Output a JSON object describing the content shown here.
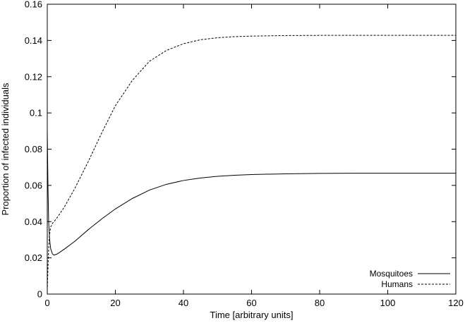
{
  "chart_data": {
    "type": "line",
    "xlabel": "Time [arbitrary units]",
    "ylabel": "Proportion of infected individuals",
    "xlim": [
      0,
      120
    ],
    "ylim": [
      0,
      0.16
    ],
    "x_ticks": [
      0,
      20,
      40,
      60,
      80,
      100,
      120
    ],
    "x_tick_labels": [
      "0",
      "20",
      "40",
      "60",
      "80",
      "100",
      "120"
    ],
    "y_ticks": [
      0,
      0.02,
      0.04,
      0.06,
      0.08,
      0.1,
      0.12,
      0.14,
      0.16
    ],
    "y_tick_labels": [
      "0",
      "0.02",
      "0.04",
      "0.06",
      "0.08",
      "0.1",
      "0.12",
      "0.14",
      "0.16"
    ],
    "grid": false,
    "legend_position": "bottom-right",
    "series": [
      {
        "name": "Mosquitoes",
        "style": "solid",
        "x": [
          0,
          0.2,
          0.4,
          0.7,
          1,
          1.5,
          2,
          3,
          5,
          8,
          12,
          16,
          20,
          25,
          30,
          35,
          40,
          45,
          50,
          55,
          60,
          70,
          80,
          90,
          100,
          110,
          120
        ],
        "y": [
          0.09,
          0.06,
          0.04,
          0.03,
          0.025,
          0.0222,
          0.0215,
          0.0222,
          0.0248,
          0.029,
          0.0355,
          0.0415,
          0.047,
          0.0528,
          0.0574,
          0.0606,
          0.0627,
          0.0641,
          0.065,
          0.0656,
          0.066,
          0.0664,
          0.0666,
          0.0667,
          0.0667,
          0.0667,
          0.0667
        ]
      },
      {
        "name": "Humans",
        "style": "dashed",
        "x": [
          0,
          0.3,
          0.6,
          1,
          1.5,
          2,
          3,
          5,
          8,
          12,
          16,
          20,
          25,
          30,
          35,
          40,
          45,
          50,
          55,
          60,
          70,
          80,
          90,
          100,
          110,
          120
        ],
        "y": [
          0.002,
          0.02,
          0.032,
          0.037,
          0.039,
          0.04,
          0.0425,
          0.048,
          0.058,
          0.073,
          0.089,
          0.104,
          0.118,
          0.1285,
          0.1345,
          0.1382,
          0.1404,
          0.1415,
          0.1421,
          0.1424,
          0.1427,
          0.1428,
          0.1428,
          0.1428,
          0.1428,
          0.1428
        ]
      }
    ]
  }
}
